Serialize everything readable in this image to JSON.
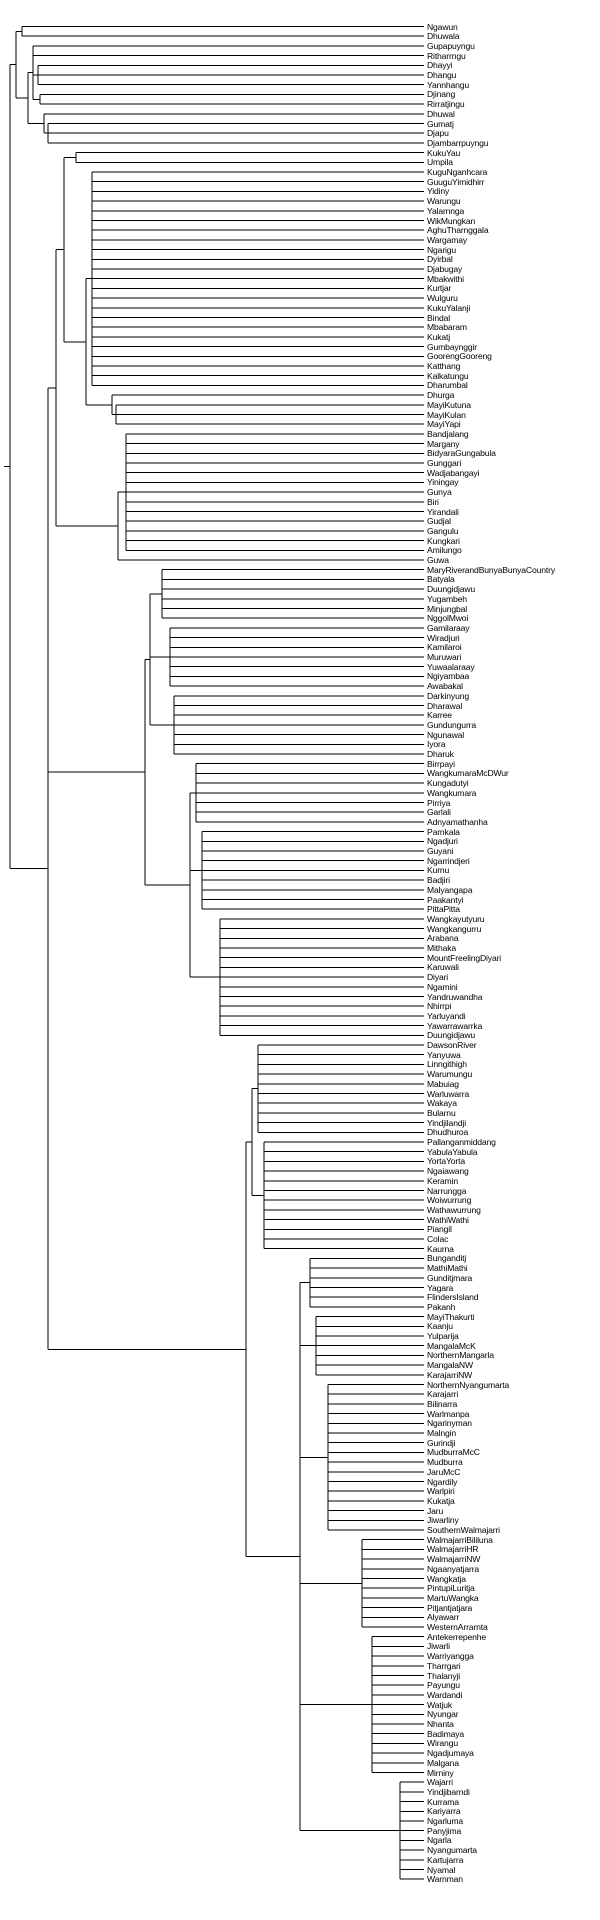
{
  "leaves": [
    "Ngawun",
    "Dhuwala",
    "Gupapuyngu",
    "Ritharrngu",
    "Dhayyi",
    "Dhangu",
    "Yannhangu",
    "Djinang",
    "Rirratjingu",
    "Dhuwal",
    "Gumatj",
    "Djapu",
    "Djambarrpuyngu",
    "KukuYau",
    "Umpila",
    "KuguNganhcara",
    "GuuguYimidhirr",
    "Yidiny",
    "Warungu",
    "Yalarnnga",
    "WikMungkan",
    "AghuTharnggala",
    "Wargamay",
    "Ngarigu",
    "Dyirbal",
    "Djabugay",
    "Mbakwithi",
    "Kurtjar",
    "Wulguru",
    "KukuYalanji",
    "Bindal",
    "Mbabaram",
    "Kukatj",
    "Gumbaynggir",
    "GoorengGooreng",
    "Katthang",
    "Kalkatungu",
    "Dharumbal",
    "Dhurga",
    "MayiKutuna",
    "MayiKulan",
    "MayiYapi",
    "Bandjalang",
    "Margany",
    "BidyaraGungabula",
    "Gunggari",
    "Wadjabangayi",
    "Yiningay",
    "Gunya",
    "Biri",
    "Yirandali",
    "Gudjal",
    "Gangulu",
    "Kungkari",
    "Amilungo",
    "Guwa",
    "MaryRiverandBunyaBunyaCountry",
    "Batyala",
    "Duungidjawu",
    "Yugambeh",
    "Minjungbal",
    "NggolMwoi",
    "Gamilaraay",
    "Wiradjuri",
    "Kamilaroi",
    "Muruwari",
    "Yuwaalaraay",
    "Ngiyambaa",
    "Awabakal",
    "Darkinyung",
    "Dharawal",
    "Karree",
    "Gundungurra",
    "Ngunawal",
    "Iyora",
    "Dharuk",
    "Birrpayi",
    "WangkumaraMcDWur",
    "Kungadutyi",
    "Wangkumara",
    "Pirriya",
    "Garlali",
    "Adnyamathanha",
    "Parnkala",
    "Ngadjuri",
    "Guyani",
    "Ngarrindjeri",
    "Kurnu",
    "Badjiri",
    "Malyangapa",
    "Paakantyi",
    "PittaPitta",
    "Wangkayutyuru",
    "Wangkangurru",
    "Arabana",
    "Mithaka",
    "MountFreelingDiyari",
    "Karuwali",
    "Diyari",
    "Ngamini",
    "Yandruwandha",
    "Nhirrpi",
    "Yarluyandi",
    "Yawarrawarrka",
    "Duungidjawu",
    "DawsonRiver",
    "Yanyuwa",
    "Linngithigh",
    "Warumungu",
    "Mabuiag",
    "Warluwarra",
    "Wakaya",
    "Bularnu",
    "Yindjilandji",
    "Dhudhuroa",
    "Pallanganmiddang",
    "YabulaYabula",
    "YortaYorta",
    "Ngaiawang",
    "Keramin",
    "Narrungga",
    "Woiwurrung",
    "Wathawurrung",
    "WathiWathi",
    "Piangil",
    "Colac",
    "Kaurna",
    "Bunganditj",
    "MathiMathi",
    "Gunditjmara",
    "Yagara",
    "FlindersIsland",
    "Pakanh",
    "MayiThakurti",
    "Kaanju",
    "Yulparija",
    "MangalaMcK",
    "NorthernMangarla",
    "MangalaNW",
    "KarajarriNW",
    "NorthernNyangumarta",
    "Karajarri",
    "Bilinarra",
    "Warlmanpa",
    "Ngarinyman",
    "Malngin",
    "Gurindji",
    "MudburraMcC",
    "Mudburra",
    "JaruMcC",
    "Ngardily",
    "Warlpiri",
    "Kukatja",
    "Jaru",
    "Jiwarliny",
    "SouthernWalmajarri",
    "WalmajarriBililuna",
    "WalmajarriHR",
    "WalmajarriNW",
    "Ngaanyatjarra",
    "Wangkatja",
    "PintupiLuritja",
    "MartuWangka",
    "Pitjantjatjara",
    "Alyawarr",
    "WesternArrarnta",
    "Antekerrepenhe",
    "Jiwarli",
    "Warriyangga",
    "Tharrgari",
    "Thalanyji",
    "Payungu",
    "Wardandi",
    "Watjuk",
    "Nyungar",
    "Nhanta",
    "Badimaya",
    "Wirangu",
    "Ngadjumaya",
    "Malgana",
    "Mirniny",
    "Wajarri",
    "Yindjibarndi",
    "Kurrama",
    "Kariyarra",
    "Ngarluma",
    "Panyjima",
    "Ngarla",
    "Nyangumarta",
    "Kartujarra",
    "Nyamal",
    "Warnman"
  ]
}
